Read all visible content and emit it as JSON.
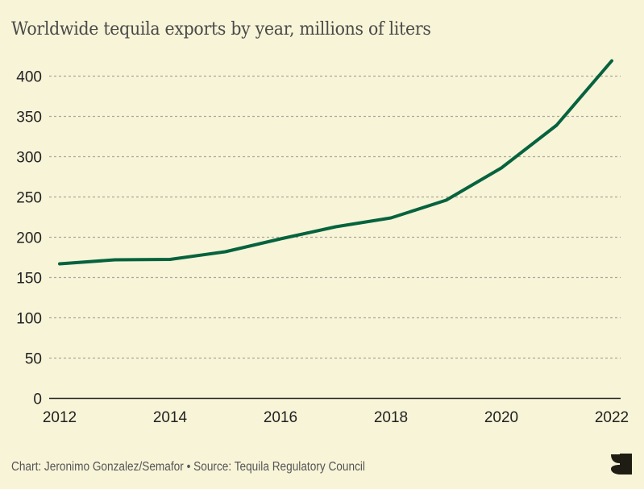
{
  "chart_data": {
    "type": "line",
    "title": "Worldwide tequila exports by year, millions of liters",
    "xlabel": "",
    "ylabel": "",
    "x": [
      2012,
      2013,
      2014,
      2015,
      2016,
      2017,
      2018,
      2019,
      2020,
      2021,
      2022
    ],
    "series": [
      {
        "name": "Tequila exports",
        "values": [
          167,
          172,
          172.5,
          182,
          198,
          213,
          224,
          246,
          286,
          339,
          419
        ],
        "color": "#05633e"
      }
    ],
    "ylim": [
      0,
      420
    ],
    "xlim": [
      2012,
      2022
    ],
    "yticks": [
      0,
      50,
      100,
      150,
      200,
      250,
      300,
      350,
      400
    ],
    "xticks": [
      2012,
      2014,
      2016,
      2018,
      2020,
      2022
    ],
    "grid": true,
    "legend": "none"
  },
  "footer": {
    "credit": "Chart: Jeronimo Gonzalez/Semafor • Source: Tequila Regulatory Council"
  },
  "logo": {
    "name": "semafor-logo-icon"
  },
  "colors": {
    "background": "#f8f4d8",
    "line": "#05633e",
    "grid": "#aaa89a",
    "axis": "#222222"
  }
}
